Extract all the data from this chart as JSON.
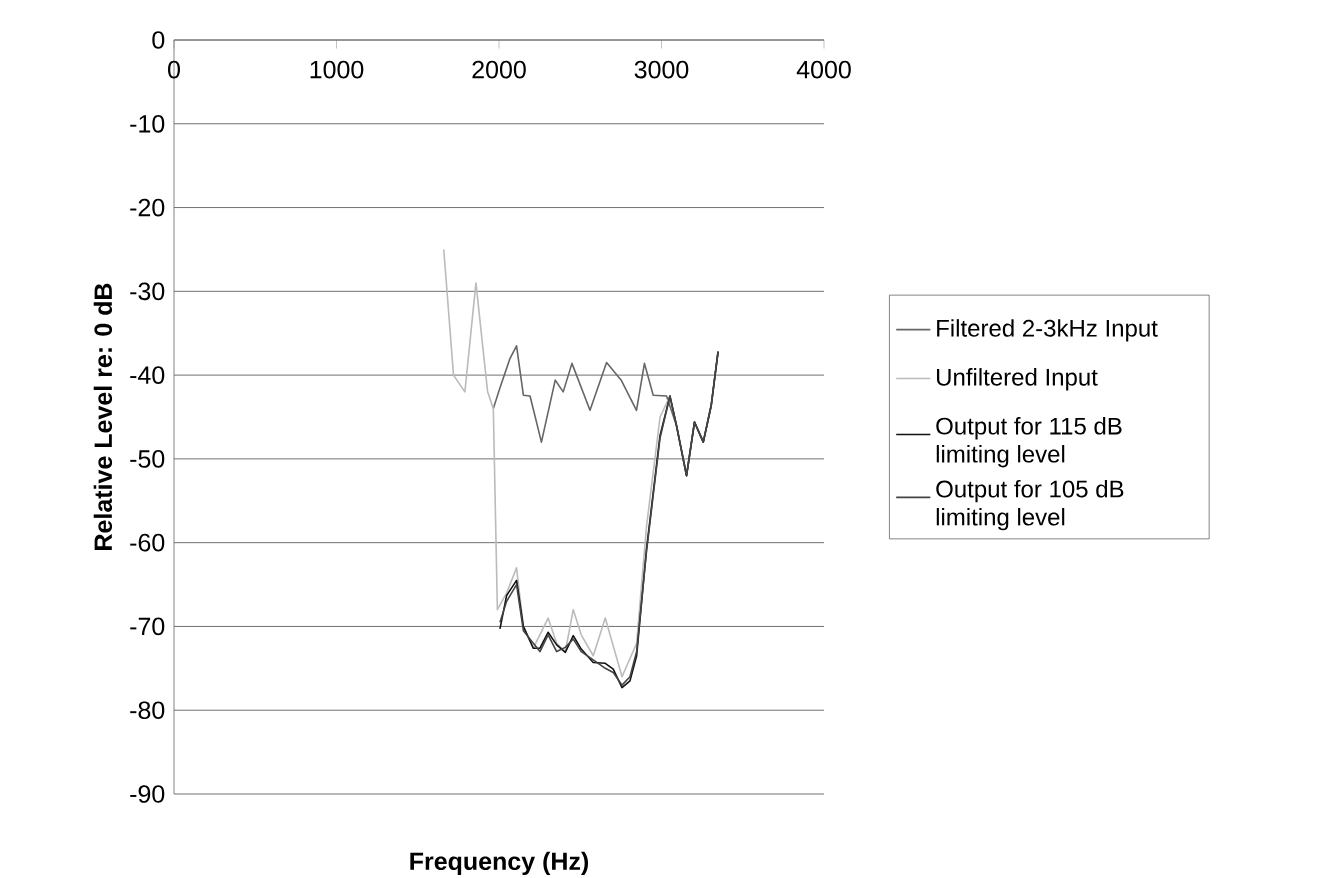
{
  "chart_data": {
    "type": "line",
    "xlabel": "Frequency (Hz)",
    "ylabel": "Relative Level re: 0 dB",
    "xlim": [
      0,
      4000
    ],
    "xticks": [
      0,
      1000,
      2000,
      3000,
      4000
    ],
    "ylim": [
      -90,
      0
    ],
    "yticks": [
      -90,
      -80,
      -70,
      -60,
      -50,
      -40,
      -30,
      -20,
      -10,
      0
    ],
    "grid": "y",
    "legend": "right",
    "marker": "none",
    "line_style": "solid",
    "series": [
      {
        "name": "Filtered 2-3kHz Input",
        "color": "#666666",
        "x": [
          1965,
          2006,
          2068,
          2108,
          2150,
          2191,
          2261,
          2346,
          2395,
          2449,
          2560,
          2662,
          2752,
          2846,
          2895,
          2949,
          3031,
          3092,
          3154,
          3203,
          3257,
          3306,
          3348
        ],
        "values": [
          -44,
          -41.5,
          -38,
          -36.5,
          -42.4,
          -42.5,
          -48,
          -40.6,
          -42,
          -38.6,
          -44.2,
          -38.5,
          -40.6,
          -44.2,
          -38.6,
          -42.4,
          -42.5,
          -46,
          -52,
          -45.6,
          -48,
          -43.6,
          -37.2
        ]
      },
      {
        "name": "Unfiltered Input",
        "color": "#bbbbbb",
        "x": [
          1660,
          1720,
          1790,
          1858,
          1930,
          1965,
          1990,
          2047,
          2108,
          2150,
          2211,
          2302,
          2355,
          2408,
          2457,
          2506,
          2580,
          2654,
          2757,
          2847,
          2908,
          2991,
          3052,
          3092,
          3154,
          3203,
          3257,
          3306,
          3348
        ],
        "values": [
          -25,
          -40,
          -42,
          -29,
          -42,
          -44,
          -68,
          -66,
          -63,
          -70,
          -72.6,
          -69,
          -72,
          -73,
          -68,
          -71,
          -73.5,
          -69,
          -76,
          -72,
          -58,
          -45,
          -42.5,
          -46,
          -52,
          -45.6,
          -48,
          -43.6,
          -37.2
        ]
      },
      {
        "name": "Output for 115 dB limiting level",
        "color": "#111111",
        "x": [
          2006,
          2047,
          2108,
          2150,
          2211,
          2252,
          2302,
          2355,
          2408,
          2457,
          2506,
          2580,
          2654,
          2703,
          2757,
          2806,
          2847,
          2908,
          2991,
          3052,
          3092,
          3154,
          3203,
          3257,
          3306,
          3348
        ],
        "values": [
          -70.3,
          -66.3,
          -64.5,
          -70,
          -72.6,
          -72.6,
          -70.7,
          -72.2,
          -73.1,
          -71.1,
          -72.7,
          -74.3,
          -74.4,
          -75.1,
          -77.3,
          -76.5,
          -73.5,
          -60.7,
          -47.2,
          -42.5,
          -46,
          -52,
          -45.6,
          -48,
          -43.6,
          -37.2
        ]
      },
      {
        "name": "Output for 105 dB limiting level",
        "color": "#444444",
        "x": [
          2006,
          2047,
          2108,
          2150,
          2211,
          2252,
          2302,
          2355,
          2408,
          2457,
          2506,
          2580,
          2654,
          2703,
          2757,
          2806,
          2847,
          2908,
          2991,
          3052,
          3092,
          3154,
          3203,
          3257,
          3306,
          3348
        ],
        "values": [
          -69.5,
          -67,
          -65,
          -70.5,
          -72,
          -73,
          -71,
          -73,
          -72.5,
          -71.5,
          -73,
          -74,
          -75,
          -75.5,
          -77,
          -76,
          -73,
          -61,
          -47.5,
          -42.5,
          -46,
          -52,
          -45.6,
          -48,
          -43.6,
          -37.2
        ]
      }
    ]
  }
}
